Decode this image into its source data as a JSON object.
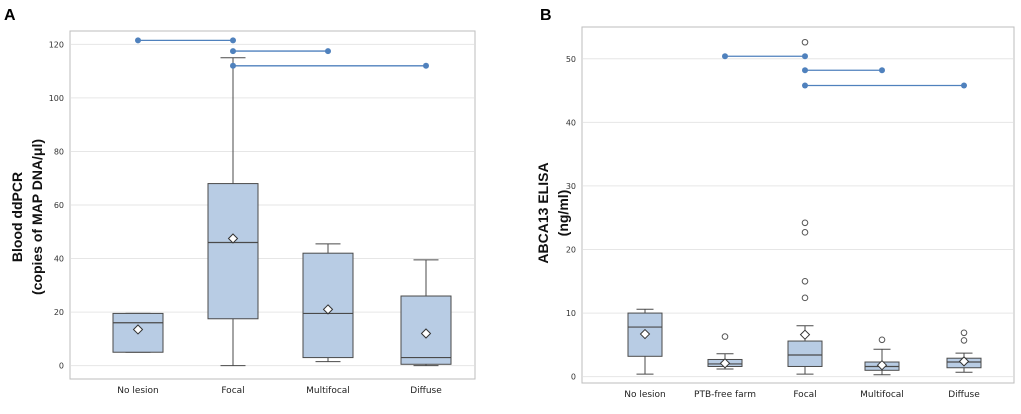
{
  "colors": {
    "box_fill": "#b8cce4",
    "box_stroke": "#4a4a4a",
    "sig_line": "#4f81bd",
    "grid": "#e6e6e6"
  },
  "chart_data": [
    {
      "panel": "A",
      "type": "boxplot",
      "ylabel_line1": "Blood ddPCR",
      "ylabel_line2": "(copies of MAP DNA/μl)",
      "ylim": [
        -5,
        125
      ],
      "yticks": [
        0,
        20,
        40,
        60,
        80,
        100,
        120
      ],
      "categories": [
        "No lesion",
        "Focal",
        "Multifocal",
        "Diffuse"
      ],
      "boxes": [
        {
          "q1": 5,
          "median": 16,
          "q3": 19.5,
          "wlo": 5,
          "whi": 19.5,
          "mean": 13.5,
          "outliers": []
        },
        {
          "q1": 17.5,
          "median": 46,
          "q3": 68,
          "wlo": 0,
          "whi": 115,
          "mean": 47.5,
          "outliers": []
        },
        {
          "q1": 3,
          "median": 19.5,
          "q3": 42,
          "wlo": 1.5,
          "whi": 45.5,
          "mean": 21,
          "outliers": []
        },
        {
          "q1": 0.5,
          "median": 3,
          "q3": 26,
          "wlo": 0,
          "whi": 39.5,
          "mean": 12,
          "outliers": []
        }
      ],
      "significance": [
        {
          "from": 0,
          "to": 1,
          "y": 121.5
        },
        {
          "from": 1,
          "to": 2,
          "y": 117.5
        },
        {
          "from": 1,
          "to": 3,
          "y": 112
        }
      ]
    },
    {
      "panel": "B",
      "type": "boxplot",
      "ylabel_line1": "ABCA13 ELISA",
      "ylabel_line2": "(ng/ml)",
      "ylim": [
        -1,
        55
      ],
      "yticks": [
        0,
        10,
        20,
        30,
        40,
        50
      ],
      "categories": [
        "No lesion",
        "PTB-free farm",
        "Focal",
        "Multifocal",
        "Diffuse"
      ],
      "boxes": [
        {
          "q1": 3.2,
          "median": 7.8,
          "q3": 10,
          "wlo": 0.4,
          "whi": 10.6,
          "mean": 6.7,
          "outliers": []
        },
        {
          "q1": 1.6,
          "median": 2,
          "q3": 2.7,
          "wlo": 1.2,
          "whi": 3.6,
          "mean": 2.1,
          "outliers": [
            6.3
          ]
        },
        {
          "q1": 1.6,
          "median": 3.4,
          "q3": 5.6,
          "wlo": 0.4,
          "whi": 8,
          "mean": 6.6,
          "outliers": [
            12.4,
            15,
            22.7,
            24.2,
            52.6
          ]
        },
        {
          "q1": 1,
          "median": 1.6,
          "q3": 2.3,
          "wlo": 0.3,
          "whi": 4.3,
          "mean": 1.8,
          "outliers": [
            5.8
          ]
        },
        {
          "q1": 1.4,
          "median": 2.3,
          "q3": 2.9,
          "wlo": 0.7,
          "whi": 3.7,
          "mean": 2.4,
          "outliers": [
            5.7,
            6.9
          ]
        }
      ],
      "significance": [
        {
          "from": 1,
          "to": 2,
          "y": 50.4
        },
        {
          "from": 2,
          "to": 3,
          "y": 48.2
        },
        {
          "from": 2,
          "to": 4,
          "y": 45.8
        }
      ]
    }
  ]
}
